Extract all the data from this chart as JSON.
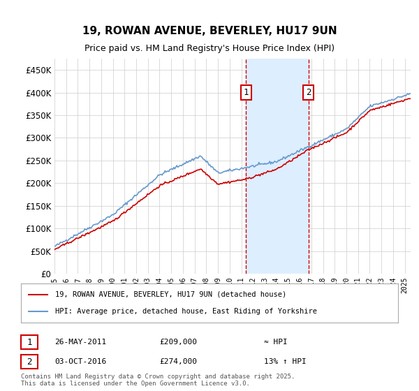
{
  "title": "19, ROWAN AVENUE, BEVERLEY, HU17 9UN",
  "subtitle": "Price paid vs. HM Land Registry's House Price Index (HPI)",
  "ylabel_ticks": [
    0,
    50000,
    100000,
    150000,
    200000,
    250000,
    300000,
    350000,
    400000,
    450000
  ],
  "ylabel_labels": [
    "£0",
    "£50K",
    "£100K",
    "£150K",
    "£200K",
    "£250K",
    "£300K",
    "£350K",
    "£400K",
    "£450K"
  ],
  "ylim": [
    0,
    475000
  ],
  "xlim_start": 1995.0,
  "xlim_end": 2025.5,
  "sale1_x": 2011.4,
  "sale1_y": 209000,
  "sale1_label": "1",
  "sale2_x": 2016.75,
  "sale2_y": 274000,
  "sale2_label": "2",
  "line_color_red": "#cc0000",
  "line_color_blue": "#6699cc",
  "shade_color": "#ddeeff",
  "marker_box_color": "#cc0000",
  "legend_line1": "19, ROWAN AVENUE, BEVERLEY, HU17 9UN (detached house)",
  "legend_line2": "HPI: Average price, detached house, East Riding of Yorkshire",
  "ann1_num": "1",
  "ann1_date": "26-MAY-2011",
  "ann1_price": "£209,000",
  "ann1_hpi": "≈ HPI",
  "ann2_num": "2",
  "ann2_date": "03-OCT-2016",
  "ann2_price": "£274,000",
  "ann2_hpi": "13% ↑ HPI",
  "footer": "Contains HM Land Registry data © Crown copyright and database right 2025.\nThis data is licensed under the Open Government Licence v3.0.",
  "bg_color": "#ffffff",
  "grid_color": "#cccccc"
}
